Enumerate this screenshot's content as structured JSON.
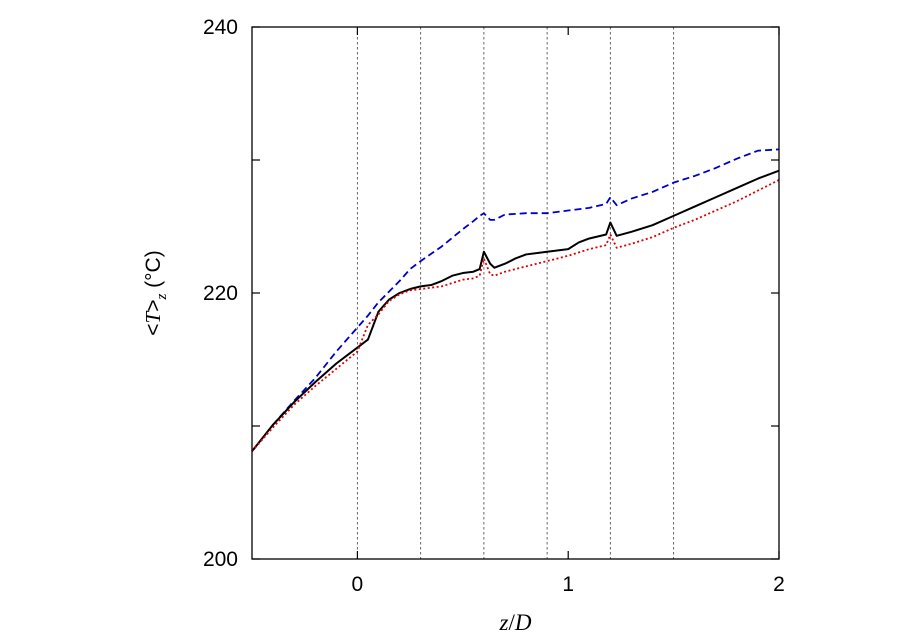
{
  "chart_data": {
    "type": "line",
    "title": "",
    "xlabel": {
      "var": "z",
      "sep": "/",
      "den": "D"
    },
    "ylabel": {
      "open": "<",
      "var": "T",
      "close": ">",
      "sub": "z",
      "unit": " (°C)"
    },
    "xlim": [
      -0.5,
      2
    ],
    "ylim": [
      200,
      240
    ],
    "x_ticks": [
      0,
      1,
      2
    ],
    "x_tick_labels": [
      "0",
      "1",
      "2"
    ],
    "y_ticks": [
      200,
      220,
      240
    ],
    "y_tick_labels": [
      "200",
      "220",
      "240"
    ],
    "y_minor_ticks": [
      210,
      230
    ],
    "vertical_reference_lines": [
      0,
      0.3,
      0.6,
      0.9,
      1.2,
      1.5
    ],
    "grid": false,
    "legend": "none",
    "series": [
      {
        "color": "#0000cc",
        "dash": "dashed",
        "x": [
          -0.5,
          -0.4,
          -0.3,
          -0.2,
          -0.1,
          0.0,
          0.05,
          0.1,
          0.15,
          0.2,
          0.25,
          0.3,
          0.4,
          0.5,
          0.55,
          0.58,
          0.6,
          0.63,
          0.65,
          0.7,
          0.8,
          0.9,
          1.0,
          1.1,
          1.18,
          1.2,
          1.23,
          1.3,
          1.4,
          1.5,
          1.6,
          1.7,
          1.8,
          1.9,
          2.0
        ],
        "y": [
          208.1,
          210.1,
          211.9,
          213.6,
          215.6,
          217.4,
          218.3,
          219.3,
          220.1,
          220.9,
          221.8,
          222.4,
          223.5,
          224.8,
          225.4,
          225.8,
          226.0,
          225.5,
          225.5,
          225.9,
          226.0,
          226.0,
          226.2,
          226.4,
          226.7,
          227.2,
          226.6,
          227.1,
          227.6,
          228.3,
          228.8,
          229.4,
          230.1,
          230.7,
          230.8
        ]
      },
      {
        "color": "#000000",
        "dash": "solid",
        "x": [
          -0.5,
          -0.4,
          -0.3,
          -0.2,
          -0.1,
          0.0,
          0.05,
          0.1,
          0.15,
          0.2,
          0.25,
          0.3,
          0.35,
          0.4,
          0.45,
          0.5,
          0.55,
          0.58,
          0.6,
          0.63,
          0.65,
          0.7,
          0.75,
          0.8,
          0.9,
          1.0,
          1.05,
          1.1,
          1.18,
          1.2,
          1.23,
          1.3,
          1.4,
          1.5,
          1.6,
          1.7,
          1.8,
          1.9,
          2.0
        ],
        "y": [
          208.1,
          210.1,
          211.8,
          213.3,
          214.7,
          215.9,
          216.5,
          218.6,
          219.5,
          220.0,
          220.3,
          220.5,
          220.6,
          220.9,
          221.3,
          221.5,
          221.6,
          221.8,
          223.1,
          222.2,
          221.9,
          222.2,
          222.6,
          222.9,
          223.1,
          223.3,
          223.8,
          224.1,
          224.4,
          225.3,
          224.3,
          224.6,
          225.1,
          225.8,
          226.5,
          227.2,
          227.9,
          228.6,
          229.2
        ]
      },
      {
        "color": "#dd0000",
        "dash": "dotted",
        "x": [
          -0.5,
          -0.4,
          -0.3,
          -0.2,
          -0.1,
          0.0,
          0.05,
          0.1,
          0.15,
          0.2,
          0.25,
          0.3,
          0.4,
          0.5,
          0.55,
          0.58,
          0.6,
          0.63,
          0.65,
          0.7,
          0.8,
          0.9,
          1.0,
          1.1,
          1.18,
          1.2,
          1.23,
          1.3,
          1.4,
          1.5,
          1.6,
          1.7,
          1.8,
          1.9,
          2.0
        ],
        "y": [
          208.1,
          209.9,
          211.6,
          213.0,
          214.3,
          215.6,
          217.6,
          218.4,
          219.4,
          219.9,
          220.2,
          220.3,
          220.5,
          221.0,
          221.1,
          221.3,
          222.6,
          221.4,
          221.3,
          221.6,
          222.0,
          222.4,
          222.8,
          223.3,
          223.6,
          224.4,
          223.4,
          223.7,
          224.2,
          224.9,
          225.5,
          226.2,
          226.9,
          227.7,
          228.5
        ]
      }
    ]
  }
}
